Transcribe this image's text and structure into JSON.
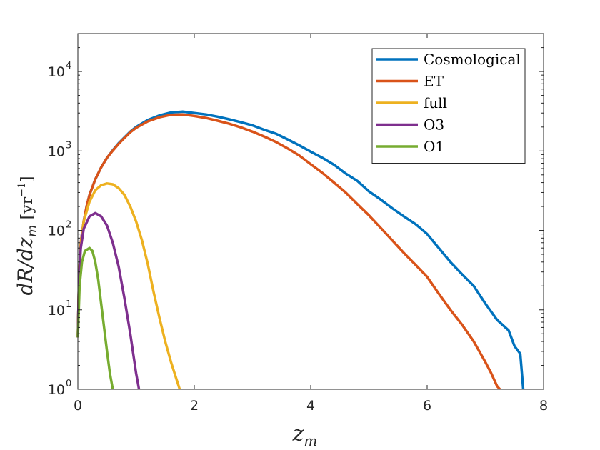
{
  "chart_data": {
    "type": "line",
    "xlabel": "z_m",
    "ylabel": "dR/dz_m   [yr^-1]",
    "yscale": "log",
    "xlim": [
      0,
      8
    ],
    "ylim": [
      1,
      30000
    ],
    "x_ticks": [
      "0",
      "2",
      "4",
      "6",
      "8"
    ],
    "y_ticks": [
      {
        "base": "10",
        "exp": "0"
      },
      {
        "base": "10",
        "exp": "1"
      },
      {
        "base": "10",
        "exp": "2"
      },
      {
        "base": "10",
        "exp": "3"
      },
      {
        "base": "10",
        "exp": "4"
      }
    ],
    "legend_position": "top-right",
    "series": [
      {
        "name": "Cosmological",
        "color": "#0072BD",
        "points": [
          [
            0.0,
            4.5
          ],
          [
            0.02,
            25
          ],
          [
            0.05,
            70
          ],
          [
            0.1,
            130
          ],
          [
            0.15,
            200
          ],
          [
            0.2,
            280
          ],
          [
            0.3,
            440
          ],
          [
            0.4,
            620
          ],
          [
            0.5,
            820
          ],
          [
            0.6,
            1020
          ],
          [
            0.7,
            1250
          ],
          [
            0.8,
            1480
          ],
          [
            0.9,
            1750
          ],
          [
            1.0,
            2000
          ],
          [
            1.2,
            2450
          ],
          [
            1.4,
            2800
          ],
          [
            1.6,
            3050
          ],
          [
            1.8,
            3120
          ],
          [
            2.0,
            3000
          ],
          [
            2.2,
            2880
          ],
          [
            2.4,
            2700
          ],
          [
            2.6,
            2500
          ],
          [
            2.8,
            2300
          ],
          [
            3.0,
            2100
          ],
          [
            3.2,
            1850
          ],
          [
            3.4,
            1650
          ],
          [
            3.6,
            1400
          ],
          [
            3.8,
            1180
          ],
          [
            4.0,
            980
          ],
          [
            4.2,
            820
          ],
          [
            4.4,
            670
          ],
          [
            4.6,
            520
          ],
          [
            4.8,
            420
          ],
          [
            5.0,
            310
          ],
          [
            5.2,
            245
          ],
          [
            5.4,
            190
          ],
          [
            5.6,
            150
          ],
          [
            5.8,
            120
          ],
          [
            6.0,
            90
          ],
          [
            6.2,
            60
          ],
          [
            6.4,
            40
          ],
          [
            6.6,
            28
          ],
          [
            6.8,
            20
          ],
          [
            7.0,
            12
          ],
          [
            7.2,
            7.5
          ],
          [
            7.4,
            5.5
          ],
          [
            7.5,
            3.5
          ],
          [
            7.6,
            2.8
          ],
          [
            7.65,
            1.0
          ]
        ]
      },
      {
        "name": "ET",
        "color": "#D95319",
        "points": [
          [
            0.0,
            4.5
          ],
          [
            0.02,
            25
          ],
          [
            0.05,
            70
          ],
          [
            0.1,
            130
          ],
          [
            0.15,
            200
          ],
          [
            0.2,
            280
          ],
          [
            0.3,
            440
          ],
          [
            0.4,
            620
          ],
          [
            0.5,
            820
          ],
          [
            0.6,
            1010
          ],
          [
            0.7,
            1230
          ],
          [
            0.8,
            1460
          ],
          [
            0.9,
            1720
          ],
          [
            1.0,
            1950
          ],
          [
            1.2,
            2350
          ],
          [
            1.4,
            2650
          ],
          [
            1.6,
            2850
          ],
          [
            1.8,
            2880
          ],
          [
            2.0,
            2750
          ],
          [
            2.2,
            2600
          ],
          [
            2.4,
            2400
          ],
          [
            2.6,
            2200
          ],
          [
            2.8,
            1980
          ],
          [
            3.0,
            1750
          ],
          [
            3.2,
            1520
          ],
          [
            3.4,
            1300
          ],
          [
            3.6,
            1080
          ],
          [
            3.8,
            880
          ],
          [
            4.0,
            680
          ],
          [
            4.2,
            530
          ],
          [
            4.4,
            400
          ],
          [
            4.6,
            300
          ],
          [
            4.8,
            215
          ],
          [
            5.0,
            155
          ],
          [
            5.2,
            108
          ],
          [
            5.4,
            75
          ],
          [
            5.6,
            52
          ],
          [
            5.8,
            37
          ],
          [
            6.0,
            26
          ],
          [
            6.2,
            16
          ],
          [
            6.4,
            10
          ],
          [
            6.6,
            6.5
          ],
          [
            6.8,
            4.0
          ],
          [
            7.0,
            2.2
          ],
          [
            7.1,
            1.6
          ],
          [
            7.2,
            1.1
          ],
          [
            7.25,
            1.0
          ]
        ]
      },
      {
        "name": "full",
        "color": "#EDB120",
        "points": [
          [
            0.0,
            4.5
          ],
          [
            0.02,
            25
          ],
          [
            0.05,
            65
          ],
          [
            0.1,
            130
          ],
          [
            0.2,
            230
          ],
          [
            0.3,
            320
          ],
          [
            0.4,
            370
          ],
          [
            0.5,
            390
          ],
          [
            0.6,
            380
          ],
          [
            0.7,
            340
          ],
          [
            0.8,
            280
          ],
          [
            0.9,
            200
          ],
          [
            1.0,
            130
          ],
          [
            1.1,
            75
          ],
          [
            1.2,
            38
          ],
          [
            1.3,
            17
          ],
          [
            1.4,
            8
          ],
          [
            1.5,
            4
          ],
          [
            1.6,
            2.2
          ],
          [
            1.7,
            1.3
          ],
          [
            1.75,
            1.0
          ]
        ]
      },
      {
        "name": "O3",
        "color": "#7E2F8E",
        "points": [
          [
            0.0,
            4.5
          ],
          [
            0.02,
            25
          ],
          [
            0.05,
            60
          ],
          [
            0.1,
            105
          ],
          [
            0.2,
            150
          ],
          [
            0.3,
            165
          ],
          [
            0.4,
            150
          ],
          [
            0.5,
            115
          ],
          [
            0.6,
            70
          ],
          [
            0.7,
            35
          ],
          [
            0.8,
            14
          ],
          [
            0.9,
            5
          ],
          [
            1.0,
            1.6
          ],
          [
            1.05,
            1.0
          ]
        ]
      },
      {
        "name": "O1",
        "color": "#77AC30",
        "points": [
          [
            0.0,
            4.5
          ],
          [
            0.03,
            20
          ],
          [
            0.07,
            40
          ],
          [
            0.12,
            55
          ],
          [
            0.2,
            60
          ],
          [
            0.25,
            55
          ],
          [
            0.3,
            40
          ],
          [
            0.35,
            24
          ],
          [
            0.4,
            12
          ],
          [
            0.45,
            6
          ],
          [
            0.5,
            3
          ],
          [
            0.55,
            1.6
          ],
          [
            0.6,
            1.0
          ]
        ]
      }
    ]
  }
}
